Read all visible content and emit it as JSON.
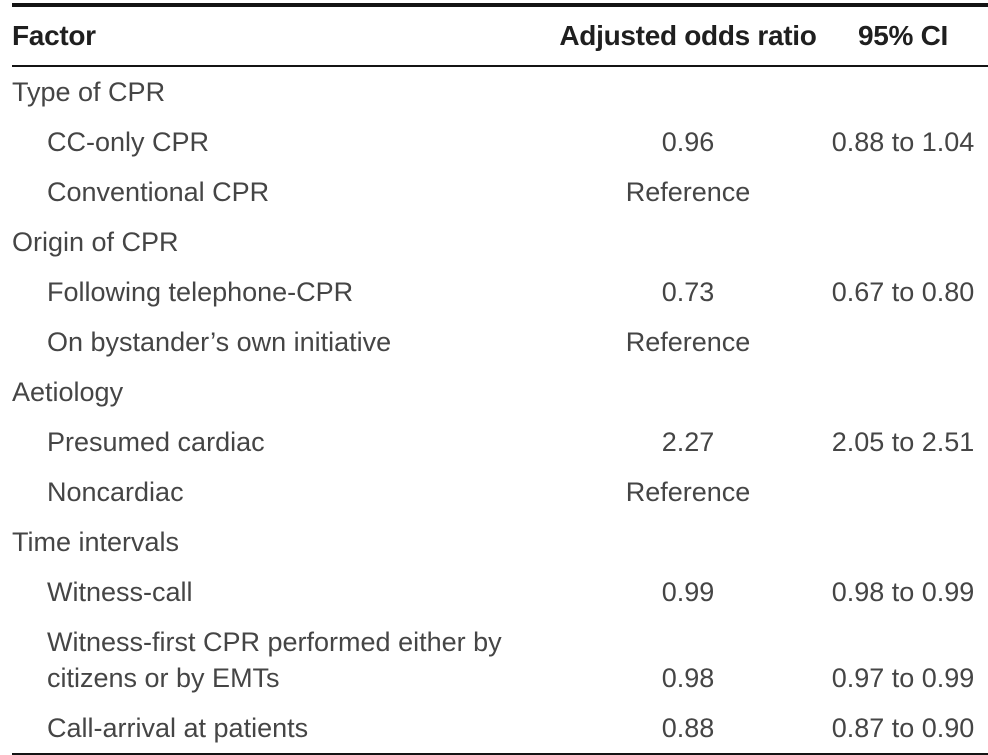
{
  "table": {
    "columns": {
      "factor": "Factor",
      "odds_ratio": "Adjusted odds ratio",
      "ci": "95% CI"
    },
    "rows": [
      {
        "type": "group",
        "factor": "Type of CPR",
        "or": "",
        "ci": ""
      },
      {
        "type": "item",
        "factor": "CC-only CPR",
        "or": "0.96",
        "ci": "0.88 to 1.04"
      },
      {
        "type": "item",
        "factor": "Conventional CPR",
        "or": "Reference",
        "ci": ""
      },
      {
        "type": "group",
        "factor": "Origin of CPR",
        "or": "",
        "ci": ""
      },
      {
        "type": "item",
        "factor": "Following telephone-CPR",
        "or": "0.73",
        "ci": "0.67 to 0.80"
      },
      {
        "type": "item",
        "factor": "On bystander’s own initiative",
        "or": "Reference",
        "ci": ""
      },
      {
        "type": "group",
        "factor": "Aetiology",
        "or": "",
        "ci": ""
      },
      {
        "type": "item",
        "factor": "Presumed cardiac",
        "or": "2.27",
        "ci": "2.05 to 2.51"
      },
      {
        "type": "item",
        "factor": "Noncardiac",
        "or": "Reference",
        "ci": ""
      },
      {
        "type": "group",
        "factor": "Time intervals",
        "or": "",
        "ci": ""
      },
      {
        "type": "item",
        "factor": "Witness-call",
        "or": "0.99",
        "ci": "0.98 to 0.99"
      },
      {
        "type": "item",
        "factor": "Witness-first CPR performed either by citizens or by EMTs",
        "or": "0.98",
        "ci": "0.97 to 0.99"
      },
      {
        "type": "item",
        "factor": "Call-arrival at patients",
        "or": "0.88",
        "ci": "0.87 to 0.90"
      }
    ]
  },
  "colors": {
    "rule": "#141414",
    "header_text": "#1f1f1f",
    "body_text": "#454545",
    "background": "#ffffff"
  }
}
